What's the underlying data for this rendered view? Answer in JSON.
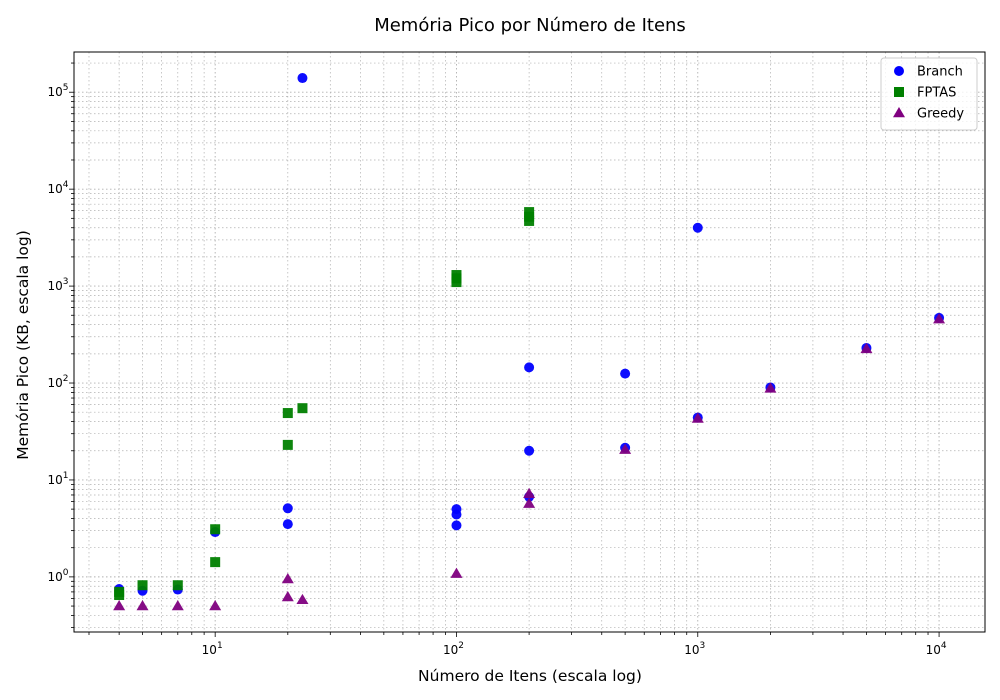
{
  "chart_data": {
    "type": "scatter",
    "title": "Memória Pico por Número de Itens",
    "xlabel": "Número de Itens (escala log)",
    "ylabel": "Memória Pico (KB, escala log)",
    "xscale": "log",
    "yscale": "log",
    "xlim": [
      2.6,
      15500
    ],
    "ylim": [
      0.27,
      260000
    ],
    "grid": true,
    "legend_position": "top-right",
    "x_ticks": [
      {
        "value": 10,
        "base": "10",
        "exp": "1"
      },
      {
        "value": 100,
        "base": "10",
        "exp": "2"
      },
      {
        "value": 1000,
        "base": "10",
        "exp": "3"
      },
      {
        "value": 10000,
        "base": "10",
        "exp": "4"
      }
    ],
    "y_ticks": [
      {
        "value": 1,
        "base": "10",
        "exp": "0"
      },
      {
        "value": 10,
        "base": "10",
        "exp": "1"
      },
      {
        "value": 100,
        "base": "10",
        "exp": "2"
      },
      {
        "value": 1000,
        "base": "10",
        "exp": "3"
      },
      {
        "value": 10000,
        "base": "10",
        "exp": "4"
      },
      {
        "value": 100000,
        "base": "10",
        "exp": "5"
      }
    ],
    "series": [
      {
        "name": "Branch",
        "marker": "circle",
        "color": "#0000ff",
        "points": [
          [
            4,
            0.75
          ],
          [
            5,
            0.72
          ],
          [
            7,
            0.74
          ],
          [
            10,
            2.9
          ],
          [
            20,
            5.1
          ],
          [
            20,
            3.5
          ],
          [
            23,
            140000
          ],
          [
            100,
            5.0
          ],
          [
            100,
            4.4
          ],
          [
            100,
            3.4
          ],
          [
            200,
            145
          ],
          [
            200,
            20
          ],
          [
            200,
            6.7
          ],
          [
            500,
            125
          ],
          [
            500,
            21.5
          ],
          [
            1000,
            4000
          ],
          [
            1000,
            44
          ],
          [
            2000,
            90
          ],
          [
            5000,
            230
          ],
          [
            10000,
            470
          ]
        ]
      },
      {
        "name": "FPTAS",
        "marker": "square",
        "color": "#008000",
        "points": [
          [
            4,
            0.7
          ],
          [
            4,
            0.65
          ],
          [
            5,
            0.82
          ],
          [
            7,
            0.82
          ],
          [
            10,
            3.1
          ],
          [
            10,
            1.42
          ],
          [
            20,
            49
          ],
          [
            20,
            23
          ],
          [
            23,
            55
          ],
          [
            100,
            1300
          ],
          [
            100,
            1200
          ],
          [
            100,
            1100
          ],
          [
            200,
            5800
          ],
          [
            200,
            5200
          ],
          [
            200,
            4700
          ]
        ]
      },
      {
        "name": "Greedy",
        "marker": "triangle",
        "color": "#800080",
        "points": [
          [
            4,
            0.5
          ],
          [
            5,
            0.5
          ],
          [
            7,
            0.5
          ],
          [
            10,
            0.5
          ],
          [
            20,
            0.95
          ],
          [
            20,
            0.62
          ],
          [
            23,
            0.58
          ],
          [
            100,
            1.08
          ],
          [
            200,
            7.2
          ],
          [
            200,
            5.7
          ],
          [
            500,
            20.5
          ],
          [
            1000,
            43
          ],
          [
            2000,
            88
          ],
          [
            5000,
            225
          ],
          [
            10000,
            455
          ]
        ]
      }
    ]
  }
}
